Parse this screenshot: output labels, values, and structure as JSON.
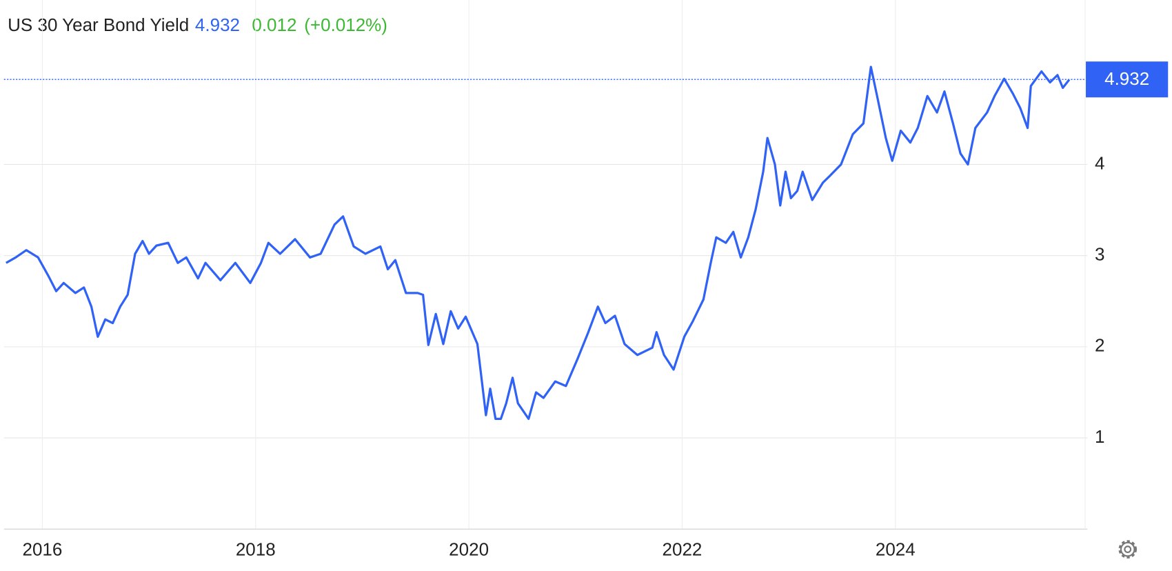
{
  "chart_data": {
    "type": "line",
    "title": "US 30 Year Bond Yield",
    "current": {
      "value": 4.932,
      "label": "4.932"
    },
    "change": 0.012,
    "change_pct": {
      "value": 0.012,
      "label": "(+0.012%)"
    },
    "xlim": [
      2015.64,
      2025.8
    ],
    "xticks": [
      2016,
      2018,
      2020,
      2022,
      2024
    ],
    "ylim": [
      0,
      5.8
    ],
    "yticks": [
      1,
      2,
      3,
      4
    ],
    "grid": true,
    "series": [
      {
        "name": "US 30 Year Bond Yield",
        "color": "#2f62f5",
        "x": [
          2015.66,
          2015.75,
          2015.85,
          2015.96,
          2016.06,
          2016.13,
          2016.2,
          2016.31,
          2016.39,
          2016.46,
          2016.52,
          2016.59,
          2016.66,
          2016.73,
          2016.8,
          2016.87,
          2016.94,
          2017.0,
          2017.07,
          2017.18,
          2017.27,
          2017.35,
          2017.46,
          2017.53,
          2017.67,
          2017.81,
          2017.95,
          2018.05,
          2018.12,
          2018.23,
          2018.37,
          2018.51,
          2018.61,
          2018.74,
          2018.82,
          2018.92,
          2019.03,
          2019.17,
          2019.24,
          2019.31,
          2019.41,
          2019.52,
          2019.57,
          2019.62,
          2019.69,
          2019.76,
          2019.83,
          2019.9,
          2019.97,
          2020.08,
          2020.16,
          2020.2,
          2020.25,
          2020.3,
          2020.35,
          2020.41,
          2020.46,
          2020.56,
          2020.63,
          2020.7,
          2020.81,
          2020.91,
          2021.02,
          2021.12,
          2021.21,
          2021.28,
          2021.37,
          2021.46,
          2021.58,
          2021.72,
          2021.76,
          2021.83,
          2021.92,
          2022.02,
          2022.1,
          2022.2,
          2022.27,
          2022.32,
          2022.41,
          2022.48,
          2022.55,
          2022.62,
          2022.69,
          2022.76,
          2022.8,
          2022.87,
          2022.92,
          2022.97,
          2023.02,
          2023.08,
          2023.13,
          2023.22,
          2023.32,
          2023.39,
          2023.49,
          2023.6,
          2023.7,
          2023.77,
          2023.83,
          2023.91,
          2023.97,
          2024.05,
          2024.14,
          2024.21,
          2024.3,
          2024.39,
          2024.46,
          2024.54,
          2024.61,
          2024.68,
          2024.75,
          2024.86,
          2024.93,
          2025.02,
          2025.1,
          2025.17,
          2025.24,
          2025.27,
          2025.37,
          2025.45,
          2025.52,
          2025.57,
          2025.63
        ],
        "values": [
          2.92,
          2.98,
          3.06,
          2.98,
          2.77,
          2.61,
          2.7,
          2.59,
          2.65,
          2.44,
          2.11,
          2.3,
          2.26,
          2.44,
          2.57,
          3.02,
          3.16,
          3.02,
          3.11,
          3.14,
          2.92,
          2.98,
          2.75,
          2.92,
          2.73,
          2.92,
          2.7,
          2.92,
          3.14,
          3.02,
          3.18,
          2.98,
          3.02,
          3.34,
          3.43,
          3.1,
          3.02,
          3.1,
          2.85,
          2.95,
          2.59,
          2.59,
          2.57,
          2.02,
          2.36,
          2.03,
          2.39,
          2.2,
          2.33,
          2.03,
          1.25,
          1.54,
          1.21,
          1.21,
          1.38,
          1.66,
          1.38,
          1.21,
          1.5,
          1.44,
          1.62,
          1.57,
          1.87,
          2.16,
          2.44,
          2.26,
          2.34,
          2.03,
          1.91,
          1.99,
          2.16,
          1.91,
          1.75,
          2.11,
          2.28,
          2.52,
          2.93,
          3.2,
          3.14,
          3.26,
          2.98,
          3.2,
          3.51,
          3.92,
          4.29,
          4.0,
          3.55,
          3.92,
          3.63,
          3.71,
          3.92,
          3.61,
          3.8,
          3.88,
          4.0,
          4.33,
          4.45,
          5.07,
          4.74,
          4.29,
          4.04,
          4.37,
          4.24,
          4.4,
          4.75,
          4.57,
          4.8,
          4.45,
          4.12,
          4.0,
          4.4,
          4.57,
          4.75,
          4.94,
          4.78,
          4.62,
          4.4,
          4.86,
          5.02,
          4.9,
          4.98,
          4.84,
          4.93
        ]
      }
    ]
  }
}
